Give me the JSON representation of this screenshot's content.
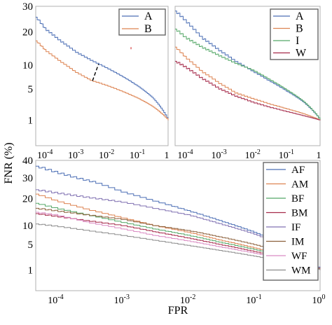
{
  "axis_labels": {
    "y": "FNR (%)",
    "x": "FPR"
  },
  "chart_data": [
    {
      "panel": "top-left",
      "type": "line",
      "x_scale": "log",
      "y_scale": "sqrt",
      "xlim": [
        5e-05,
        1
      ],
      "ylim": [
        0,
        30
      ],
      "x_ticks": [
        {
          "v": 0.0001,
          "b": "10",
          "e": "-4"
        },
        {
          "v": 0.001,
          "b": "10",
          "e": "-3"
        },
        {
          "v": 0.01,
          "b": "10",
          "e": "-2"
        },
        {
          "v": 0.1,
          "b": "10",
          "e": "-1"
        },
        {
          "v": 1,
          "b": "1",
          "e": ""
        }
      ],
      "y_ticks": [
        1,
        5,
        10,
        20,
        30
      ],
      "legend": "top-right",
      "series": [
        {
          "name": "A",
          "color": "#4c6fb5",
          "stair": 0.9,
          "points": [
            [
              5e-05,
              25.5
            ],
            [
              0.0001,
              21
            ],
            [
              0.0003,
              17
            ],
            [
              0.001,
              13.5
            ],
            [
              0.003,
              11.3
            ],
            [
              0.01,
              9.3
            ],
            [
              0.03,
              7.5
            ],
            [
              0.1,
              5.5
            ],
            [
              0.3,
              3.6
            ],
            [
              1,
              1
            ]
          ]
        },
        {
          "name": "B",
          "color": "#dd8452",
          "stair": 0.5,
          "points": [
            [
              5e-05,
              17
            ],
            [
              0.0001,
              14
            ],
            [
              0.0003,
              11
            ],
            [
              0.001,
              8.3
            ],
            [
              0.003,
              6.6
            ],
            [
              0.01,
              5.6
            ],
            [
              0.03,
              4.6
            ],
            [
              0.1,
              3.5
            ],
            [
              0.3,
              2.4
            ],
            [
              1,
              1
            ]
          ]
        }
      ],
      "annotation": {
        "type": "dashed-segment",
        "x": [
          0.0035,
          0.0055
        ],
        "y": [
          6.5,
          10.3
        ],
        "color": "#000000"
      },
      "dot": {
        "x": 0.06,
        "y": 15,
        "color": "#dd6666"
      }
    },
    {
      "panel": "top-right",
      "type": "line",
      "x_scale": "log",
      "y_scale": "sqrt",
      "xlim": [
        5e-05,
        1
      ],
      "ylim": [
        0,
        30
      ],
      "x_ticks": [
        {
          "v": 0.0001,
          "b": "10",
          "e": "-4"
        },
        {
          "v": 0.001,
          "b": "10",
          "e": "-3"
        },
        {
          "v": 0.01,
          "b": "10",
          "e": "-2"
        },
        {
          "v": 0.1,
          "b": "10",
          "e": "-1"
        },
        {
          "v": 1,
          "b": "1",
          "e": ""
        }
      ],
      "legend": "top-right",
      "series": [
        {
          "name": "A",
          "color": "#4c6fb5",
          "stair": 1.2,
          "points": [
            [
              5e-05,
              28
            ],
            [
              0.0001,
              24
            ],
            [
              0.0003,
              18
            ],
            [
              0.001,
              14
            ],
            [
              0.003,
              11
            ],
            [
              0.01,
              8.5
            ],
            [
              0.03,
              6.5
            ],
            [
              0.1,
              4.6
            ],
            [
              0.3,
              3
            ],
            [
              1,
              1
            ]
          ]
        },
        {
          "name": "B",
          "color": "#dd8452",
          "stair": 0.6,
          "points": [
            [
              5e-05,
              15
            ],
            [
              0.0001,
              12
            ],
            [
              0.0003,
              8.5
            ],
            [
              0.001,
              6
            ],
            [
              0.003,
              4.3
            ],
            [
              0.01,
              3.4
            ],
            [
              0.03,
              2.7
            ],
            [
              0.1,
              2.1
            ],
            [
              0.3,
              1.6
            ],
            [
              1,
              1
            ]
          ]
        },
        {
          "name": "I",
          "color": "#55a868",
          "stair": 0.9,
          "points": [
            [
              5e-05,
              21
            ],
            [
              0.0001,
              18
            ],
            [
              0.0003,
              15
            ],
            [
              0.001,
              12.5
            ],
            [
              0.003,
              10.5
            ],
            [
              0.01,
              8.8
            ],
            [
              0.03,
              6.8
            ],
            [
              0.1,
              4.8
            ],
            [
              0.3,
              3.1
            ],
            [
              1,
              1
            ]
          ]
        },
        {
          "name": "W",
          "color": "#a52a4a",
          "stair": 0.6,
          "points": [
            [
              5e-05,
              11
            ],
            [
              0.0001,
              9.5
            ],
            [
              0.0003,
              7
            ],
            [
              0.001,
              5
            ],
            [
              0.003,
              3.8
            ],
            [
              0.01,
              2.9
            ],
            [
              0.03,
              2.3
            ],
            [
              0.1,
              1.8
            ],
            [
              0.3,
              1.4
            ],
            [
              1,
              1
            ]
          ]
        }
      ]
    },
    {
      "panel": "bottom",
      "type": "line",
      "x_scale": "log",
      "y_scale": "sqrt",
      "xlim": [
        5e-05,
        1
      ],
      "ylim": [
        0,
        40
      ],
      "x_ticks": [
        {
          "v": 0.0001,
          "b": "10",
          "e": "-4"
        },
        {
          "v": 0.001,
          "b": "10",
          "e": "-3"
        },
        {
          "v": 0.01,
          "b": "10",
          "e": "-2"
        },
        {
          "v": 0.1,
          "b": "10",
          "e": "-1"
        },
        {
          "v": 1,
          "b": "10",
          "e": "0"
        }
      ],
      "y_ticks": [
        1,
        5,
        10,
        20,
        30,
        40
      ],
      "legend": "right",
      "series": [
        {
          "name": "AF",
          "color": "#4c6fb5",
          "stair": 1.4,
          "points": [
            [
              5e-05,
              36.5
            ],
            [
              0.0001,
              33
            ],
            [
              0.0002,
              30
            ],
            [
              0.0004,
              27.5
            ],
            [
              0.001,
              23
            ],
            [
              0.003,
              19
            ],
            [
              0.01,
              15
            ],
            [
              0.03,
              11.5
            ],
            [
              0.1,
              8
            ],
            [
              0.3,
              4.5
            ],
            [
              1,
              1
            ]
          ]
        },
        {
          "name": "AM",
          "color": "#dd8452",
          "stair": 0.6,
          "points": [
            [
              5e-05,
              22
            ],
            [
              0.0001,
              19
            ],
            [
              0.0003,
              15.5
            ],
            [
              0.001,
              12.5
            ],
            [
              0.003,
              10
            ],
            [
              0.01,
              8
            ],
            [
              0.03,
              6
            ],
            [
              0.1,
              4.3
            ],
            [
              0.3,
              2.8
            ],
            [
              1,
              1
            ]
          ]
        },
        {
          "name": "BF",
          "color": "#55a868",
          "stair": 0.5,
          "points": [
            [
              5e-05,
              18
            ],
            [
              0.0001,
              16
            ],
            [
              0.0003,
              13.5
            ],
            [
              0.001,
              11
            ],
            [
              0.003,
              9
            ],
            [
              0.01,
              7.2
            ],
            [
              0.03,
              5.5
            ],
            [
              0.1,
              4
            ],
            [
              0.3,
              2.6
            ],
            [
              1,
              1
            ]
          ]
        },
        {
          "name": "BM",
          "color": "#a52a4a",
          "stair": 0.4,
          "points": [
            [
              5e-05,
              14
            ],
            [
              0.0001,
              13
            ],
            [
              0.0003,
              11.5
            ],
            [
              0.001,
              10
            ],
            [
              0.003,
              8.2
            ],
            [
              0.01,
              6.5
            ],
            [
              0.03,
              5
            ],
            [
              0.1,
              3.6
            ],
            [
              0.3,
              2.4
            ],
            [
              1,
              1
            ]
          ]
        },
        {
          "name": "IF",
          "color": "#8172b2",
          "stair": 0.9,
          "points": [
            [
              5e-05,
              24
            ],
            [
              0.0001,
              22.5
            ],
            [
              0.0003,
              20.5
            ],
            [
              0.001,
              18.5
            ],
            [
              0.003,
              16
            ],
            [
              0.01,
              13.5
            ],
            [
              0.03,
              10.5
            ],
            [
              0.1,
              7.5
            ],
            [
              0.3,
              4.2
            ],
            [
              1,
              1
            ]
          ]
        },
        {
          "name": "IM",
          "color": "#8c613c",
          "stair": 0.5,
          "points": [
            [
              5e-05,
              16
            ],
            [
              0.0001,
              15
            ],
            [
              0.0003,
              13.5
            ],
            [
              0.001,
              12
            ],
            [
              0.003,
              10
            ],
            [
              0.01,
              8.5
            ],
            [
              0.03,
              6.8
            ],
            [
              0.1,
              5
            ],
            [
              0.3,
              3.2
            ],
            [
              1,
              1
            ]
          ]
        },
        {
          "name": "WF",
          "color": "#da8bc3",
          "stair": 0.4,
          "points": [
            [
              5e-05,
              14.5
            ],
            [
              0.0001,
              13.5
            ],
            [
              0.0003,
              11
            ],
            [
              0.001,
              9
            ],
            [
              0.003,
              7.2
            ],
            [
              0.01,
              5.8
            ],
            [
              0.03,
              4.5
            ],
            [
              0.1,
              3.3
            ],
            [
              0.3,
              2.2
            ],
            [
              1,
              1
            ]
          ]
        },
        {
          "name": "WM",
          "color": "#8c8c8c",
          "stair": 0.3,
          "points": [
            [
              5e-05,
              10.5
            ],
            [
              0.0001,
              9.8
            ],
            [
              0.0003,
              8.5
            ],
            [
              0.001,
              7.2
            ],
            [
              0.003,
              6
            ],
            [
              0.01,
              4.8
            ],
            [
              0.03,
              3.8
            ],
            [
              0.1,
              2.8
            ],
            [
              0.3,
              1.9
            ],
            [
              1,
              1
            ]
          ]
        }
      ]
    }
  ]
}
